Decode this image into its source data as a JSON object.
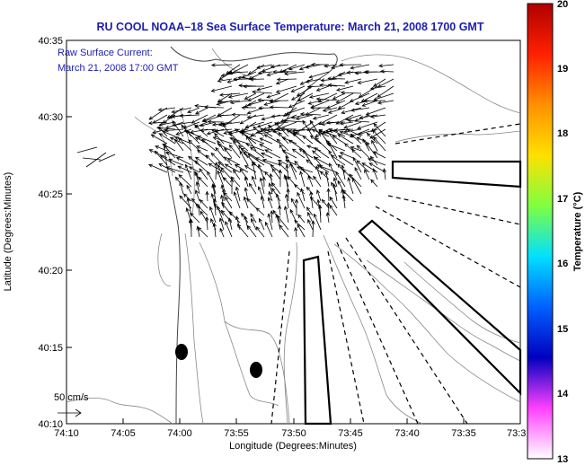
{
  "title": "RU COOL  NOAA–18  Sea Surface Temperature:  March 21, 2008 1700 GMT",
  "legend": {
    "label": "Raw Surface Current:",
    "time": "March 21, 2008 17:00 GMT",
    "scale_label": "50 cm/s"
  },
  "axes": {
    "xlabel": "Longitude (Degrees:Minutes)",
    "ylabel": "Latitude (Degrees:Minutes)",
    "xticks": [
      "74:10",
      "74:05",
      "74:00",
      "73:55",
      "73:50",
      "73:45",
      "73:40",
      "73:35",
      "73:3"
    ],
    "yticks": [
      "40:35",
      "40:30",
      "40:25",
      "40:20",
      "40:15",
      "40:10"
    ]
  },
  "colorbar": {
    "label": "Temperature (°C)",
    "ticks": [
      "20",
      "19",
      "18",
      "17",
      "16",
      "15",
      "14",
      "13"
    ],
    "colors": [
      "#b00000",
      "#ff2000",
      "#ff9000",
      "#ffe000",
      "#80ff40",
      "#00e0ff",
      "#0060ff",
      "#0000c0",
      "#ff40ff",
      "#ffffff"
    ]
  },
  "chart_data": {
    "type": "map",
    "title": "RU COOL  NOAA–18  Sea Surface Temperature:  March 21, 2008 1700 GMT",
    "xlabel": "Longitude (Degrees:Minutes)",
    "ylabel": "Latitude (Degrees:Minutes)",
    "x_range_lon_min": [
      -74.1667,
      -73.5
    ],
    "y_range_lat": [
      40.1667,
      40.5833
    ],
    "colorbar_range_c": [
      13,
      20
    ],
    "current_scale_cm_s": 50,
    "observation_markers_lonlat": [
      [
        -73.98,
        40.246
      ],
      [
        -73.872,
        40.226
      ]
    ]
  }
}
